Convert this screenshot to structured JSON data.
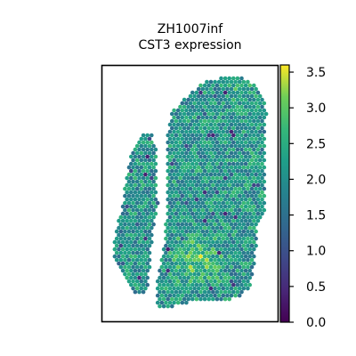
{
  "chart_data": {
    "type": "scatter",
    "title_lines": [
      "ZH1007inf",
      "CST3 expression"
    ],
    "xlabel": "",
    "ylabel": "",
    "grid": false,
    "colorbar": {
      "colormap": "viridis",
      "range": [
        0.0,
        3.6
      ],
      "ticks": [
        "0.0",
        "0.5",
        "1.0",
        "1.5",
        "2.0",
        "2.5",
        "3.0",
        "3.5"
      ]
    },
    "notes_free": true
  }
}
